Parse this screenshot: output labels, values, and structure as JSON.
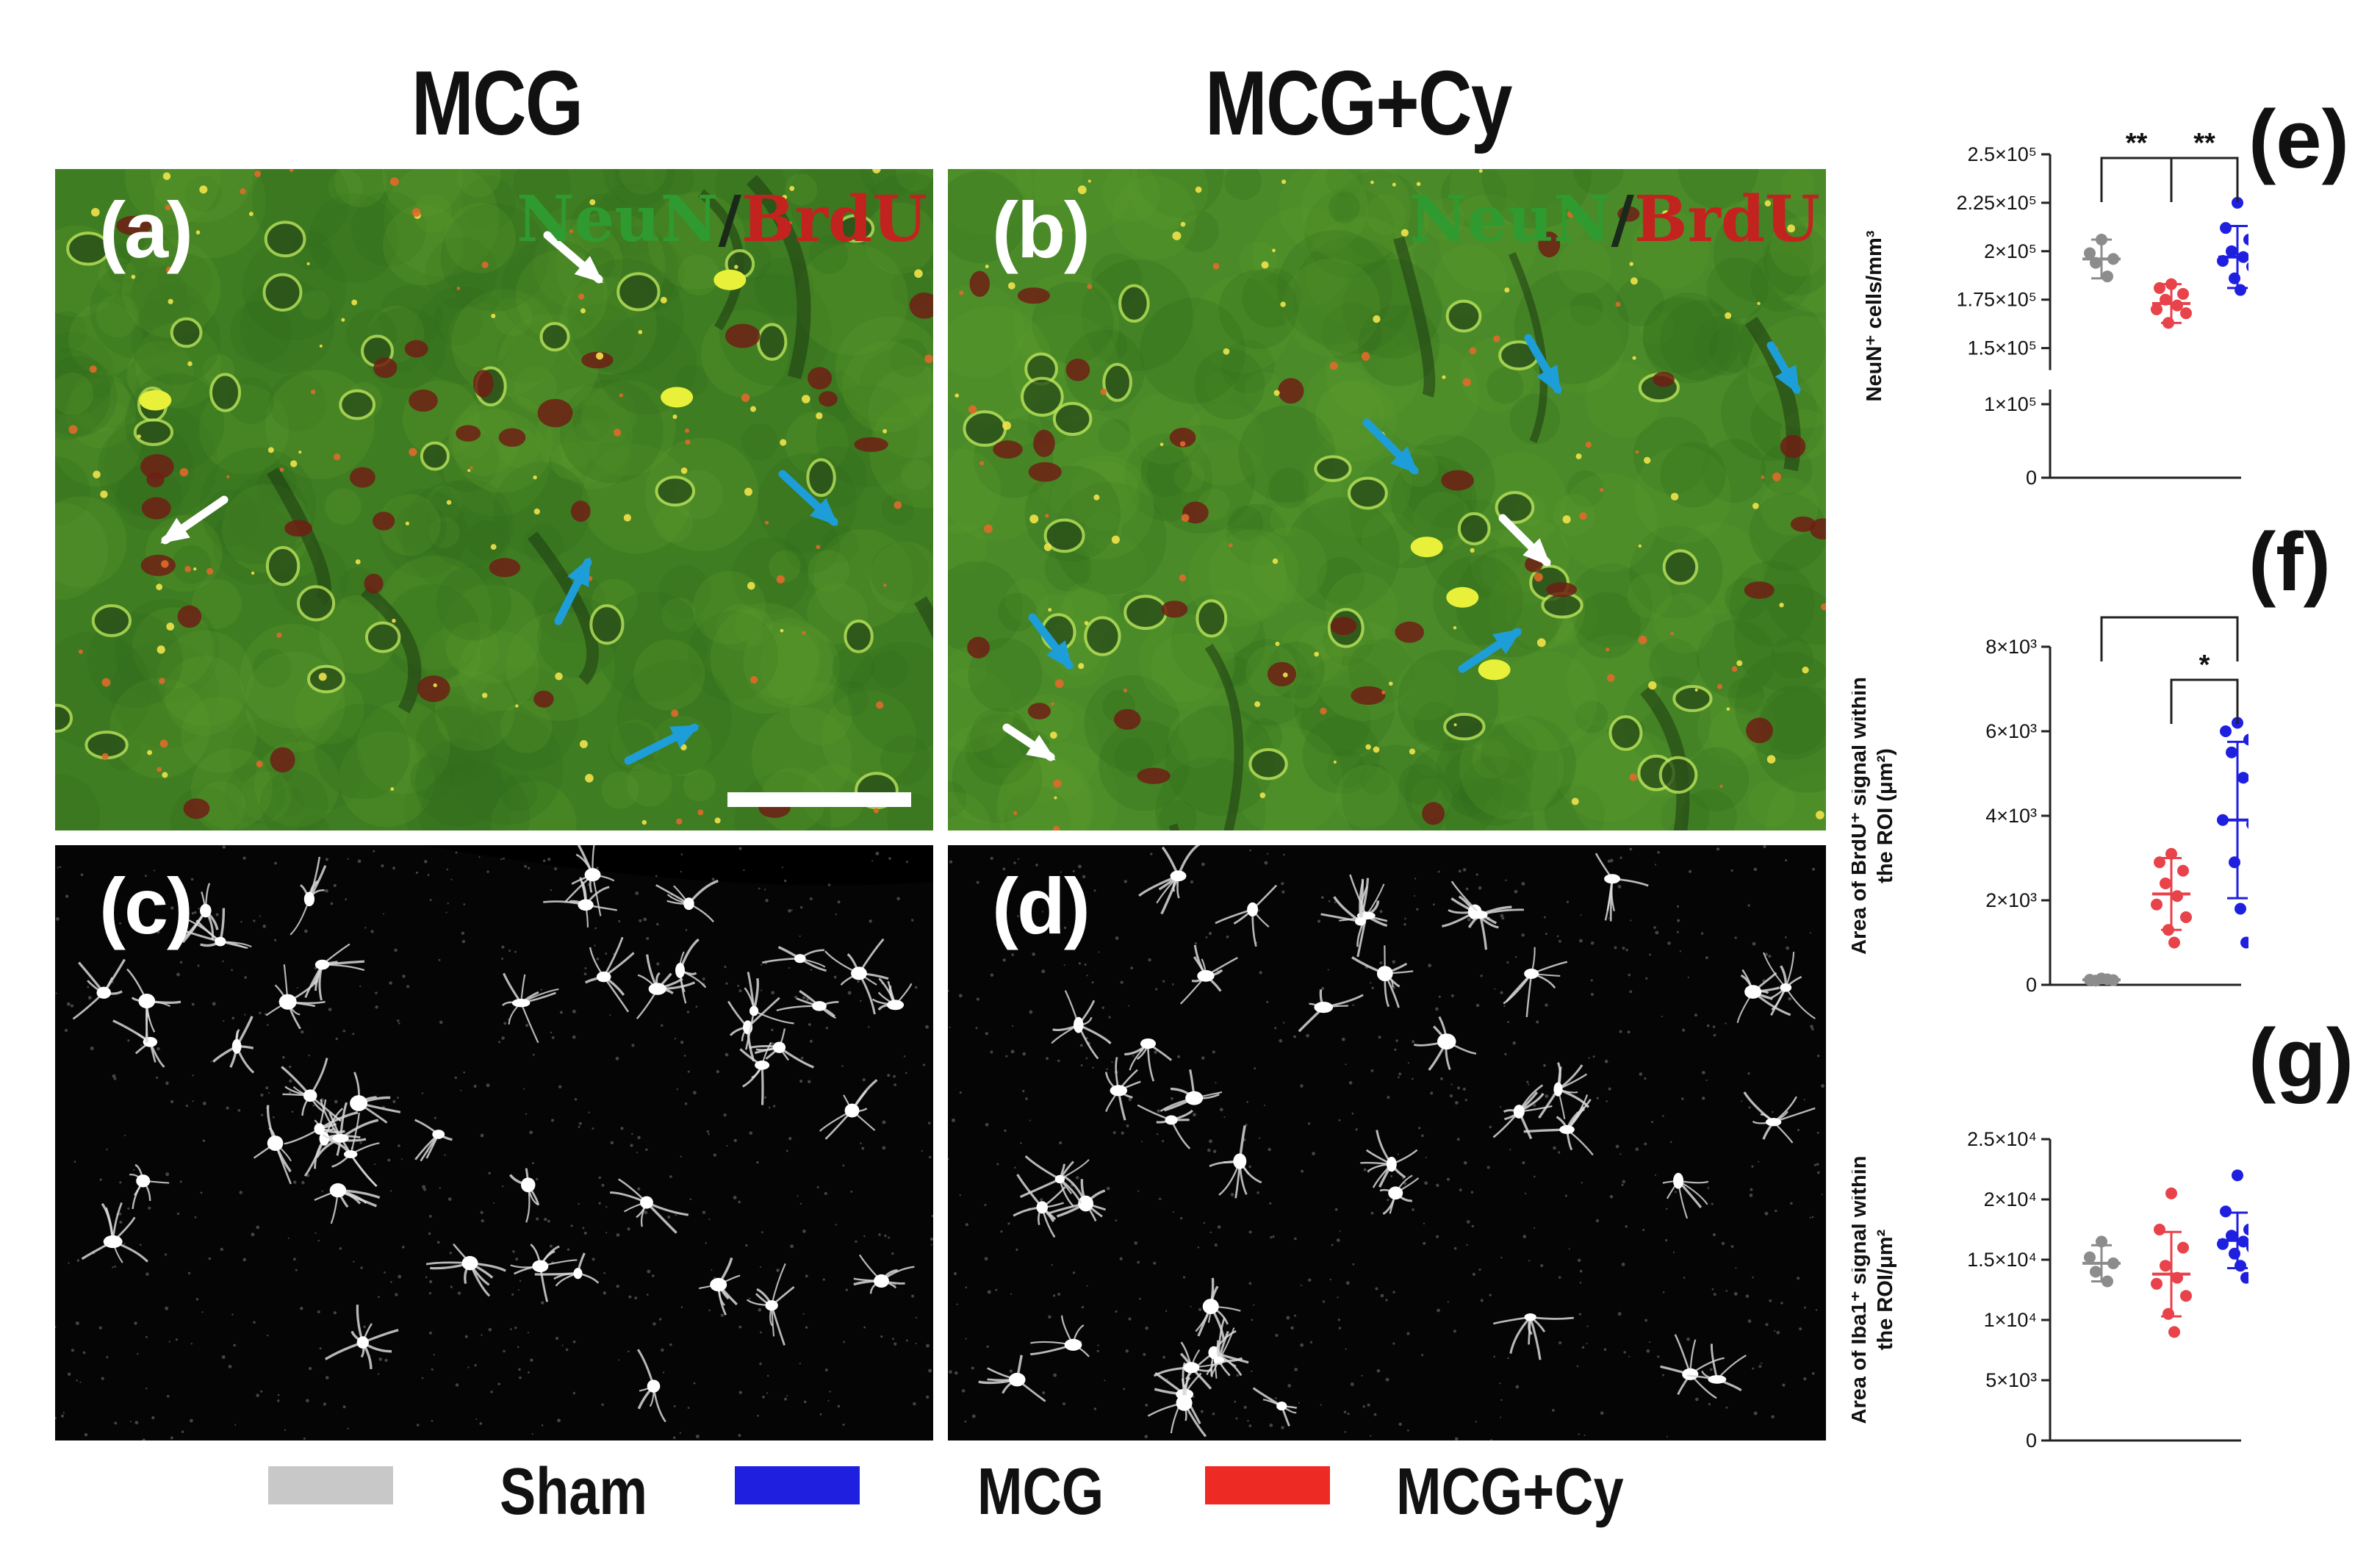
{
  "columns": {
    "left_title": "MCG",
    "right_title": "MCG+Cy"
  },
  "panels": {
    "a": {
      "label": "(a)",
      "stain_green": "NeuN",
      "stain_sep": "/",
      "stain_red": "BrdU"
    },
    "b": {
      "label": "(b)",
      "stain_green": "NeuN",
      "stain_sep": "/",
      "stain_red": "BrdU"
    },
    "c": {
      "label": "(c)"
    },
    "d": {
      "label": "(d)"
    }
  },
  "legend": {
    "items": [
      {
        "label": "Sham",
        "color": "#c8c8c8"
      },
      {
        "label": "MCG",
        "color": "#1f1fe0"
      },
      {
        "label": "MCG+Cy",
        "color": "#ee2a24"
      }
    ]
  },
  "colors": {
    "sham": "#8c8c8c",
    "mcg": "#1f1fe0",
    "mcgcy": "#e8424a",
    "arrow_blue": "#1e9ed8",
    "arrow_white": "#ffffff"
  },
  "chart_data": [
    {
      "panel": "(e)",
      "type": "scatter",
      "ylabel": "NeuN⁺ cells/mm³",
      "y_axis_break": true,
      "ylim": [
        0,
        250000
      ],
      "yticks": [
        {
          "value": 0,
          "label": "0"
        },
        {
          "value": 100000,
          "label": "1×10⁵"
        },
        {
          "value": 150000,
          "label": "1.5×10⁵"
        },
        {
          "value": 175000,
          "label": "1.75×10⁵"
        },
        {
          "value": 200000,
          "label": "2×10⁵"
        },
        {
          "value": 225000,
          "label": "2.25×10⁵"
        },
        {
          "value": 250000,
          "label": "2.5×10⁵"
        }
      ],
      "groups": [
        {
          "key": "sham",
          "mean": 196000,
          "sd": 10000,
          "points": [
            206000,
            199000,
            196000,
            194000,
            187000
          ]
        },
        {
          "key": "mcgcy",
          "mean": 173000,
          "sd": 10000,
          "points": [
            183000,
            181000,
            178000,
            175000,
            172000,
            170000,
            168000,
            163000
          ]
        },
        {
          "key": "mcg",
          "mean": 197000,
          "sd": 16000,
          "points": [
            225000,
            212000,
            206000,
            200000,
            197000,
            195000,
            192000,
            186000,
            180000
          ]
        }
      ],
      "significance": [
        {
          "from": 0,
          "to": 1,
          "label": "**"
        },
        {
          "from": 1,
          "to": 2,
          "label": "**"
        }
      ]
    },
    {
      "panel": "(f)",
      "type": "scatter",
      "ylabel": "Area of BrdU⁺ signal within the ROI (μm²)",
      "ylim": [
        0,
        8000
      ],
      "yticks": [
        {
          "value": 0,
          "label": "0"
        },
        {
          "value": 2000,
          "label": "2×10³"
        },
        {
          "value": 4000,
          "label": "4×10³"
        },
        {
          "value": 6000,
          "label": "6×10³"
        },
        {
          "value": 8000,
          "label": "8×10³"
        }
      ],
      "groups": [
        {
          "key": "sham",
          "mean": 120,
          "sd": 40,
          "points": [
            150,
            120,
            110,
            100,
            130
          ]
        },
        {
          "key": "mcgcy",
          "mean": 2150,
          "sd": 850,
          "points": [
            3100,
            2900,
            2700,
            2400,
            2100,
            1900,
            1600,
            1300,
            1000
          ]
        },
        {
          "key": "mcg",
          "mean": 3900,
          "sd": 1850,
          "points": [
            6200,
            6000,
            5800,
            5500,
            4900,
            3900,
            3800,
            2900,
            1800,
            1000
          ]
        }
      ],
      "significance": [
        {
          "from": 1,
          "to": 2,
          "label": "*"
        },
        {
          "from": 0,
          "to": 2,
          "label": "**"
        }
      ]
    },
    {
      "panel": "(g)",
      "type": "scatter",
      "ylabel": "Area of Iba1⁺ signal within the ROI/μm²",
      "ylim": [
        0,
        25000
      ],
      "yticks": [
        {
          "value": 0,
          "label": "0"
        },
        {
          "value": 5000,
          "label": "5×10³"
        },
        {
          "value": 10000,
          "label": "1×10⁴"
        },
        {
          "value": 15000,
          "label": "1.5×10⁴"
        },
        {
          "value": 20000,
          "label": "2×10⁴"
        },
        {
          "value": 25000,
          "label": "2.5×10⁴"
        }
      ],
      "groups": [
        {
          "key": "sham",
          "mean": 14700,
          "sd": 1500,
          "points": [
            16500,
            15200,
            14700,
            14000,
            13200
          ]
        },
        {
          "key": "mcgcy",
          "mean": 13800,
          "sd": 3500,
          "points": [
            20500,
            17500,
            16000,
            14500,
            13500,
            13000,
            12000,
            10500,
            9000
          ]
        },
        {
          "key": "mcg",
          "mean": 16600,
          "sd": 2300,
          "points": [
            22000,
            19000,
            17500,
            17000,
            16500,
            16300,
            16000,
            15500,
            14500,
            13500
          ]
        }
      ],
      "significance": []
    }
  ]
}
